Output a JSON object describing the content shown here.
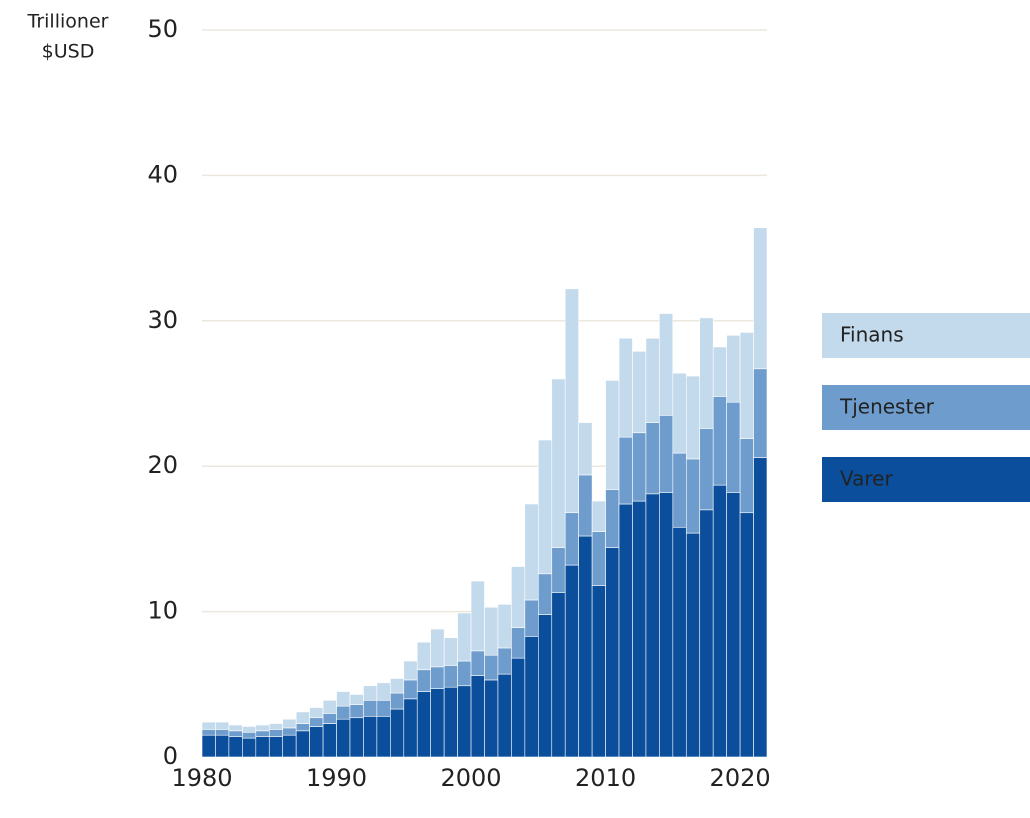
{
  "chart_data": {
    "type": "stacked_bar",
    "y_label": [
      "Trillioner",
      "$USD"
    ],
    "x": [
      1980,
      1981,
      1982,
      1983,
      1984,
      1985,
      1986,
      1987,
      1988,
      1989,
      1990,
      1991,
      1992,
      1993,
      1994,
      1995,
      1996,
      1997,
      1998,
      1999,
      2000,
      2001,
      2002,
      2003,
      2004,
      2005,
      2006,
      2007,
      2008,
      2009,
      2010,
      2011,
      2012,
      2013,
      2014,
      2015,
      2016,
      2017,
      2018,
      2019,
      2020,
      2021
    ],
    "series": [
      {
        "name": "Varer",
        "color": "#0b4f9c",
        "values": [
          1.5,
          1.5,
          1.4,
          1.3,
          1.4,
          1.4,
          1.5,
          1.8,
          2.1,
          2.3,
          2.6,
          2.7,
          2.8,
          2.8,
          3.3,
          4.0,
          4.5,
          4.7,
          4.8,
          4.9,
          5.6,
          5.3,
          5.7,
          6.8,
          8.3,
          9.8,
          11.3,
          13.2,
          15.2,
          11.8,
          14.4,
          17.4,
          17.6,
          18.1,
          18.2,
          15.8,
          15.4,
          17.0,
          18.7,
          18.2,
          16.8,
          20.6
        ]
      },
      {
        "name": "Tjenester",
        "color": "#6e9ccc",
        "values": [
          0.4,
          0.4,
          0.4,
          0.4,
          0.4,
          0.5,
          0.5,
          0.5,
          0.6,
          0.7,
          0.9,
          0.9,
          1.1,
          1.1,
          1.1,
          1.3,
          1.5,
          1.5,
          1.5,
          1.7,
          1.7,
          1.7,
          1.8,
          2.1,
          2.5,
          2.8,
          3.1,
          3.6,
          4.2,
          3.7,
          4.0,
          4.6,
          4.7,
          4.9,
          5.3,
          5.1,
          5.1,
          5.6,
          6.1,
          6.2,
          5.1,
          6.1
        ]
      },
      {
        "name": "Finans",
        "color": "#c3d9ec",
        "values": [
          0.5,
          0.5,
          0.4,
          0.4,
          0.4,
          0.4,
          0.6,
          0.8,
          0.7,
          0.9,
          1.0,
          0.7,
          1.0,
          1.2,
          1.0,
          1.3,
          1.9,
          2.6,
          1.9,
          3.3,
          4.8,
          3.3,
          3.0,
          4.2,
          6.6,
          9.2,
          11.6,
          15.4,
          3.6,
          2.1,
          7.5,
          6.8,
          5.6,
          5.8,
          7.0,
          5.5,
          5.7,
          7.6,
          3.4,
          4.6,
          7.3,
          9.7
        ]
      }
    ],
    "xlim": [
      1980,
      2022
    ],
    "xticks": [
      1980,
      1990,
      2000,
      2010,
      2020
    ],
    "ylim": [
      0,
      50
    ],
    "yticks": [
      0,
      10,
      20,
      30,
      40,
      50
    ],
    "grid": true,
    "legend": "right"
  }
}
